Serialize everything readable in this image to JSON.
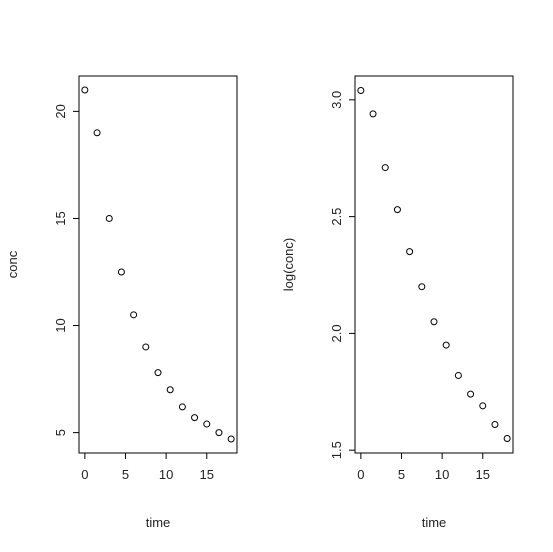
{
  "chart_data": [
    {
      "type": "scatter",
      "xlabel": "time",
      "ylabel": "conc",
      "x": [
        0,
        1.5,
        3,
        4.5,
        6,
        7.5,
        9,
        10.5,
        12,
        13.5,
        15,
        16.5,
        18
      ],
      "y": [
        21,
        19,
        15,
        12.5,
        10.5,
        9,
        7.8,
        7,
        6.2,
        5.7,
        5.4,
        5.0,
        4.7
      ],
      "xlim": [
        -0.72,
        18.72
      ],
      "ylim": [
        4.048,
        21.652
      ],
      "xticks": [
        0,
        5,
        10,
        15
      ],
      "yticks": [
        5,
        10,
        15,
        20
      ],
      "color": "#000000"
    },
    {
      "type": "scatter",
      "xlabel": "time",
      "ylabel": "log(conc)",
      "x": [
        0,
        1.5,
        3,
        4.5,
        6,
        7.5,
        9,
        10.5,
        12,
        13.5,
        15,
        16.5,
        18
      ],
      "y": [
        3.04,
        2.94,
        2.71,
        2.53,
        2.35,
        2.2,
        2.05,
        1.95,
        1.82,
        1.74,
        1.69,
        1.61,
        1.55
      ],
      "xlim": [
        -0.72,
        18.72
      ],
      "ylim": [
        1.488,
        3.102
      ],
      "xticks": [
        0,
        5,
        10,
        15
      ],
      "yticks": [
        {
          "value": 1.5,
          "label": "1.5"
        },
        {
          "value": 2,
          "label": "2.0"
        },
        2.5,
        {
          "value": 3,
          "label": "3.0"
        }
      ],
      "color": "#000000"
    }
  ]
}
